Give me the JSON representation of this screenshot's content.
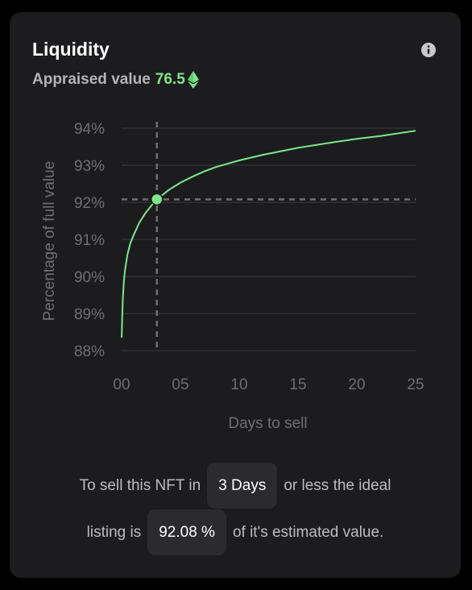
{
  "card": {
    "title": "Liquidity",
    "appraised_label": "Appraised value",
    "appraised_value": "76.5",
    "icons": {
      "info": "info-icon",
      "currency": "ethereum-icon"
    },
    "colors": {
      "accent": "#7ee68a",
      "background": "#1c1c1e"
    }
  },
  "chart_data": {
    "type": "line",
    "title": "",
    "xlabel": "Days to sell",
    "ylabel": "Percentage of full value",
    "xlim": [
      0,
      25
    ],
    "ylim": [
      88,
      94
    ],
    "x_ticks": [
      "00",
      "05",
      "10",
      "15",
      "20",
      "25"
    ],
    "y_ticks": [
      "88%",
      "89%",
      "90%",
      "91%",
      "92%",
      "93%",
      "94%"
    ],
    "grid": true,
    "series": [
      {
        "x": [
          0.01,
          0.05,
          0.1,
          0.2,
          0.3,
          0.5,
          0.75,
          1,
          1.5,
          2,
          2.5,
          3,
          4,
          5,
          6,
          7,
          8,
          10,
          12,
          15,
          18,
          20,
          22,
          25
        ],
        "values": [
          88.35,
          88.9,
          89.4,
          89.9,
          90.2,
          90.6,
          90.9,
          91.1,
          91.45,
          91.7,
          91.9,
          92.08,
          92.33,
          92.53,
          92.69,
          92.83,
          92.95,
          93.13,
          93.28,
          93.47,
          93.62,
          93.71,
          93.79,
          93.93
        ]
      }
    ],
    "marker": {
      "x": 3,
      "y": 92.08
    }
  },
  "summary": {
    "part1": "To sell this NFT in",
    "days": "3 Days",
    "part2": "or less the ideal",
    "part3": "listing is",
    "percent": "92.08 %",
    "part4": "of it's estimated value."
  }
}
